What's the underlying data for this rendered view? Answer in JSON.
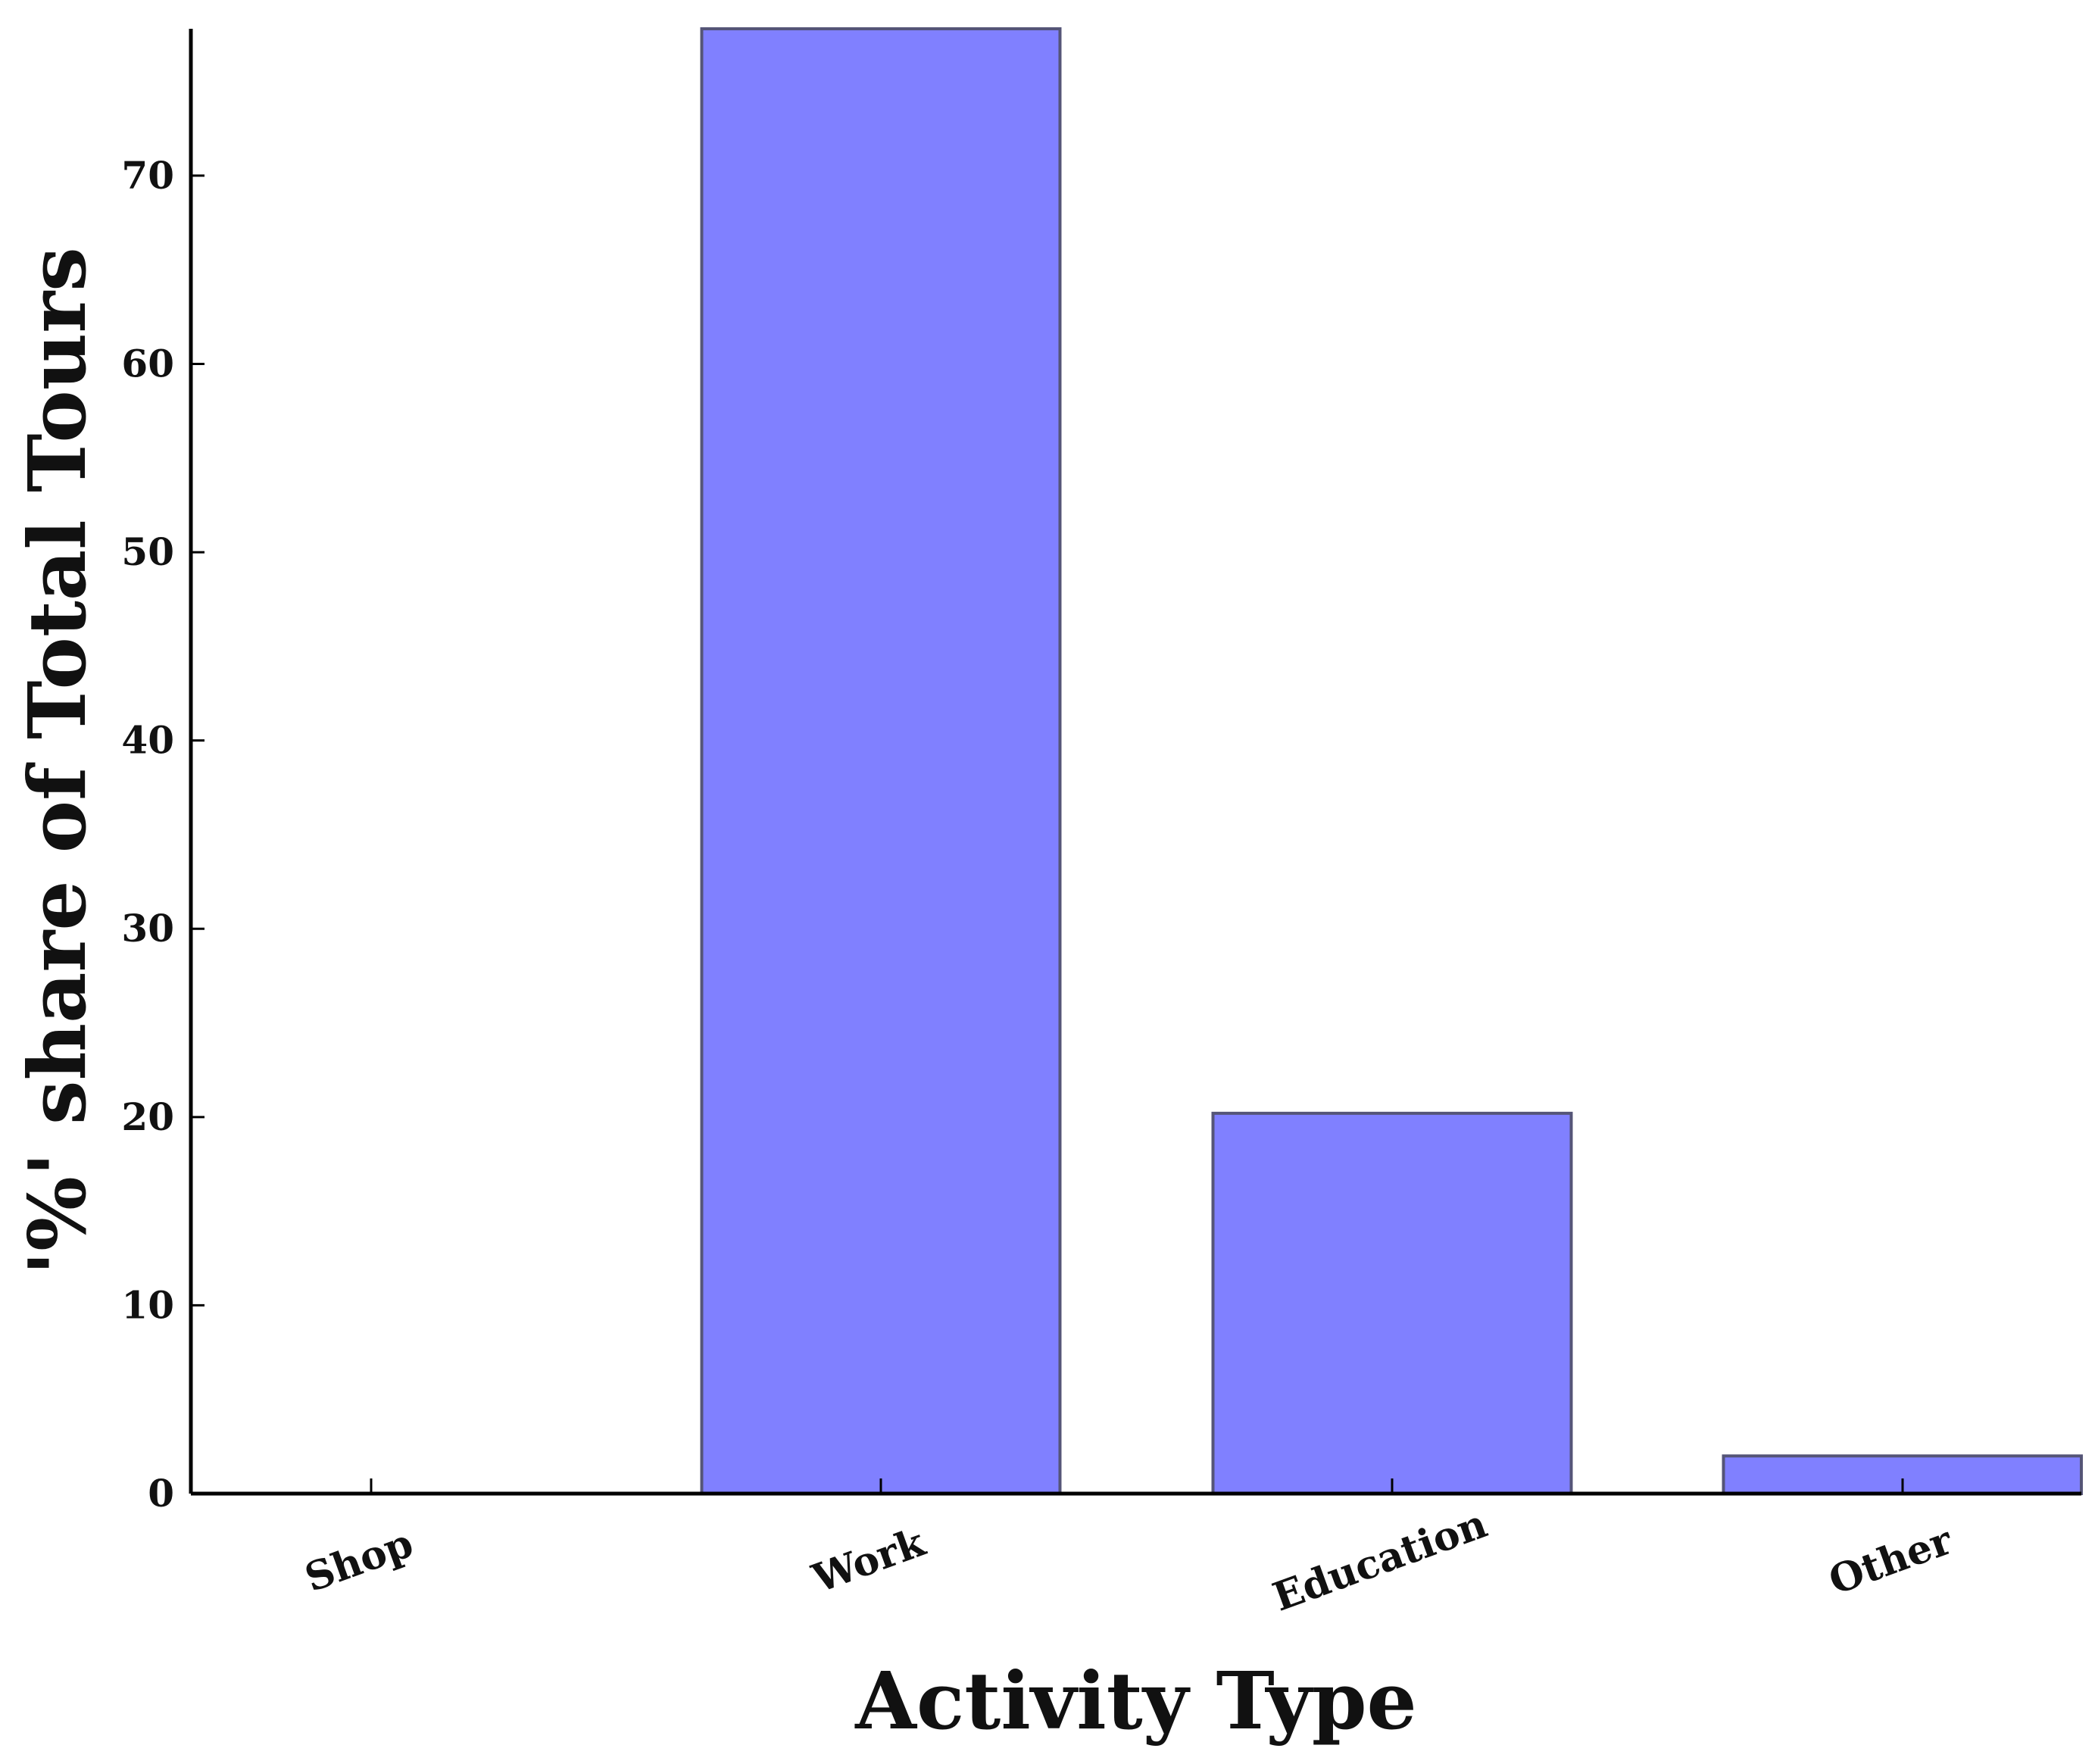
{
  "chart_data": {
    "type": "bar",
    "categories": [
      "Shop",
      "Work",
      "Education",
      "Other"
    ],
    "values": [
      0,
      77.8,
      20.2,
      2.0
    ],
    "title": "",
    "xlabel": "Activity Type",
    "ylabel": "'%' share of Total Tours",
    "ylim": [
      0,
      77.8
    ],
    "yticks": [
      0,
      10,
      20,
      30,
      40,
      50,
      60,
      70
    ],
    "grid": false,
    "legend": "none",
    "colors": {
      "bar_fill": "#8080ff",
      "bar_stroke": "#555577",
      "axis": "#000000"
    }
  }
}
